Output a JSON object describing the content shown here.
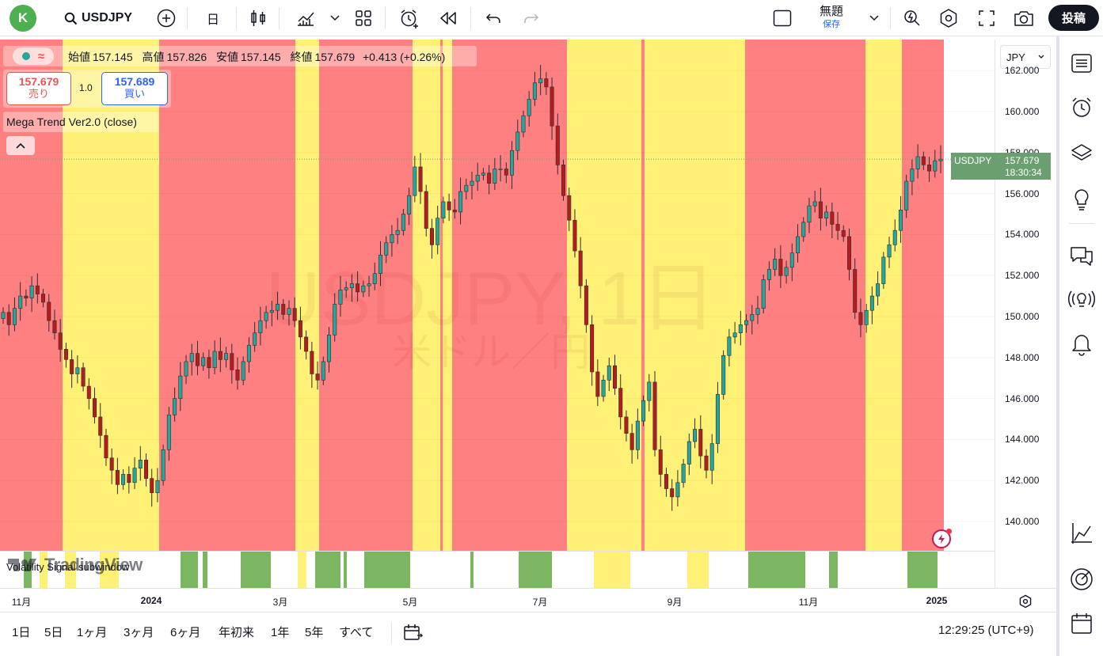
{
  "header": {
    "avatar_letter": "K",
    "symbol": "USDJPY",
    "interval": "日",
    "layout_name": "無題",
    "save_status": "保存",
    "publish_label": "投稿"
  },
  "legend": {
    "ohlc_labels": [
      "始値",
      "高値",
      "安値",
      "終値"
    ],
    "ohlc_values": [
      "157.145",
      "157.826",
      "157.145",
      "157.679"
    ],
    "change": "+0.413 (+0.26%)",
    "sell_price": "157.679",
    "sell_label": "売り",
    "spread": "1.0",
    "buy_price": "157.689",
    "buy_label": "買い",
    "indicator": "Mega Trend Ver2.0 (close)",
    "subpane_label": "Volatility Signal subwindow"
  },
  "watermark": {
    "symbol": "USDJPY, 1日",
    "description": "米ドル／円"
  },
  "logo_text": "TradingView",
  "price_axis": {
    "currency": "JPY",
    "ticks": [
      "162.000",
      "160.000",
      "158.000",
      "156.000",
      "154.000",
      "152.000",
      "150.000",
      "148.000",
      "146.000",
      "144.000",
      "142.000",
      "140.000"
    ],
    "last_symbol": "USDJPY",
    "last_price": "157.679",
    "countdown": "18:30:34"
  },
  "time_axis": {
    "labels": [
      "11月",
      "2024",
      "3月",
      "5月",
      "7月",
      "9月",
      "11月",
      "2025"
    ]
  },
  "bottom_bar": {
    "ranges": [
      "1日",
      "5日",
      "1ヶ月",
      "3ヶ月",
      "6ヶ月",
      "年初来",
      "1年",
      "5年",
      "すべて"
    ],
    "clock": "12:29:25 (UTC+9)"
  },
  "colors": {
    "bull": "#26a69a",
    "bear": "#ef5350",
    "red_zone": "#ff8080",
    "yellow_zone": "#fff176",
    "signal": "#7bb661",
    "price_label": "#6aa06f"
  },
  "icons": [
    "search-icon",
    "plus-circle-icon",
    "candles-icon",
    "indicators-icon",
    "templates-icon",
    "alert-icon",
    "replay-icon",
    "undo-icon",
    "redo-icon",
    "layout-icon",
    "chevron-down-icon",
    "quick-search-icon",
    "settings-icon",
    "fullscreen-icon",
    "camera-icon",
    "watchlist-icon",
    "alarm-icon",
    "layers-icon",
    "ideas-icon",
    "chat-icon",
    "broadcast-icon",
    "bell-icon",
    "pattern-icon",
    "target-icon",
    "calendar-icon"
  ],
  "chart_data": {
    "type": "candlestick",
    "symbol": "USDJPY",
    "interval": "1D",
    "ylim": [
      139,
      162.2
    ],
    "x_labels": [
      "11月",
      "2024",
      "3月",
      "5月",
      "7月",
      "9月",
      "11月",
      "2025"
    ],
    "close": [
      150.2,
      149.6,
      150.4,
      151.0,
      150.9,
      151.5,
      151.1,
      150.7,
      149.8,
      149.2,
      148.4,
      147.9,
      147.2,
      147.5,
      146.6,
      146.0,
      145.1,
      144.2,
      143.1,
      142.5,
      141.8,
      142.3,
      141.9,
      142.6,
      143.0,
      142.1,
      141.4,
      142.0,
      143.5,
      145.2,
      146.0,
      147.1,
      147.8,
      148.2,
      147.6,
      148.0,
      147.5,
      148.3,
      147.9,
      148.2,
      147.4,
      146.9,
      147.8,
      148.6,
      149.2,
      149.8,
      150.2,
      150.3,
      150.6,
      150.1,
      150.4,
      149.8,
      149.0,
      148.3,
      147.2,
      146.9,
      147.8,
      149.1,
      150.6,
      151.3,
      151.4,
      151.6,
      151.2,
      151.5,
      151.6,
      152.1,
      153.0,
      153.6,
      154.0,
      154.2,
      155.0,
      155.9,
      157.3,
      156.1,
      154.3,
      153.5,
      154.8,
      155.6,
      155.2,
      155.1,
      156.1,
      156.4,
      156.6,
      156.9,
      157.0,
      156.5,
      157.2,
      157.2,
      156.9,
      158.1,
      159.0,
      159.8,
      160.6,
      161.4,
      161.6,
      161.2,
      159.3,
      157.4,
      155.9,
      154.7,
      153.2,
      151.5,
      149.6,
      147.3,
      146.1,
      146.9,
      147.6,
      146.5,
      145.1,
      144.3,
      143.5,
      144.9,
      145.9,
      146.8,
      143.5,
      142.3,
      141.6,
      141.2,
      141.9,
      142.8,
      143.9,
      144.5,
      143.2,
      142.5,
      143.8,
      146.2,
      148.1,
      149.0,
      149.2,
      149.6,
      149.8,
      150.1,
      150.4,
      151.8,
      152.3,
      152.8,
      152.0,
      152.4,
      153.1,
      153.9,
      154.6,
      155.4,
      155.6,
      154.8,
      155.1,
      154.5,
      154.2,
      153.9,
      152.3,
      150.2,
      149.6,
      150.3,
      151.0,
      151.6,
      152.9,
      153.5,
      154.2,
      155.2,
      156.6,
      157.2,
      157.8,
      157.4,
      157.1,
      157.6,
      157.679
    ]
  }
}
